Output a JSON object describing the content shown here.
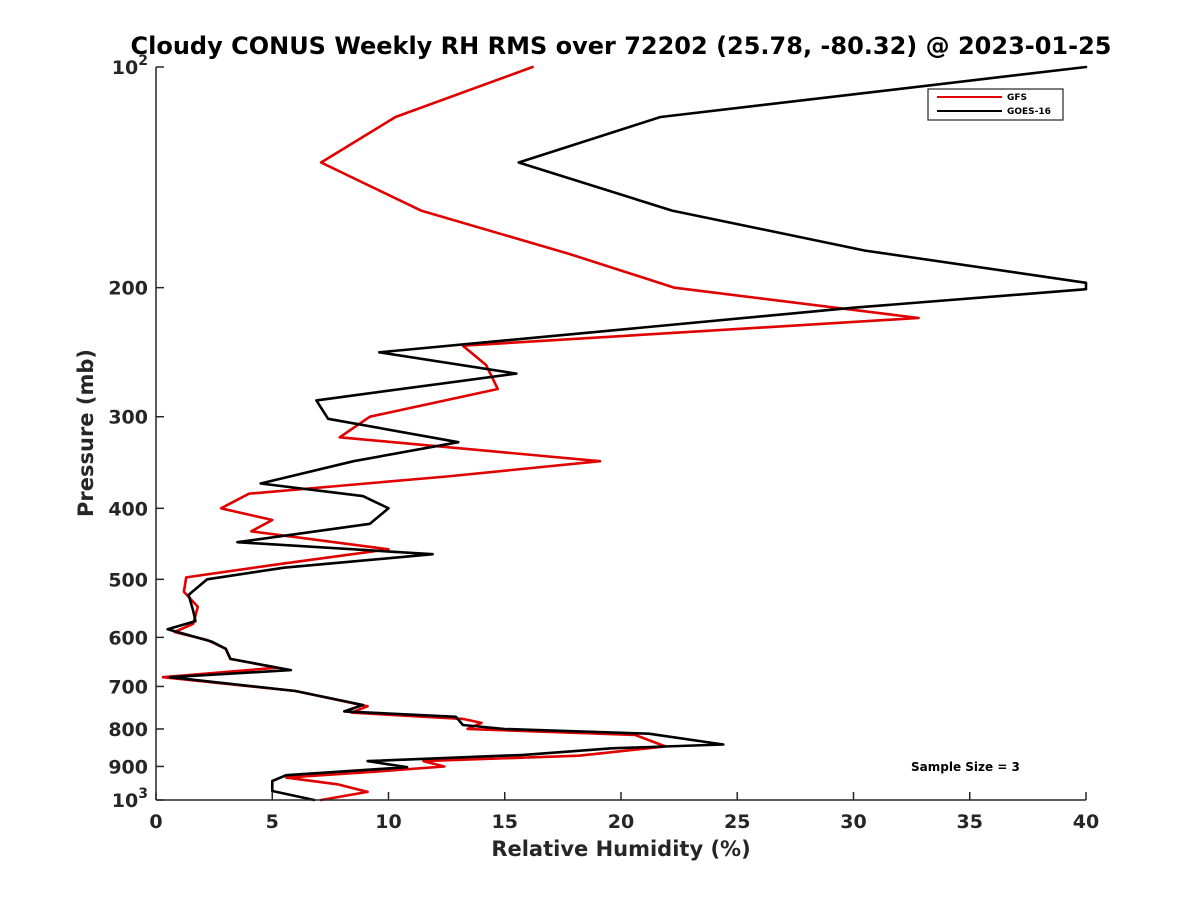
{
  "chart_data": {
    "type": "line",
    "title": "Cloudy CONUS Weekly RH RMS over 72202 (25.78, -80.32) @ 2023-01-25",
    "xlabel": "Relative Humidity (%)",
    "ylabel": "Pressure (mb)",
    "xlim": [
      0,
      40
    ],
    "ylim": [
      100,
      1000
    ],
    "y_scale": "log",
    "y_reversed": true,
    "grid": false,
    "legend_position": "top-right",
    "x_ticks": [
      0,
      5,
      10,
      15,
      20,
      25,
      30,
      35,
      40
    ],
    "y_ticks": [
      {
        "value": 100,
        "base": "10",
        "exp": "2"
      },
      {
        "value": 200,
        "label": "200"
      },
      {
        "value": 300,
        "label": "300"
      },
      {
        "value": 400,
        "label": "400"
      },
      {
        "value": 500,
        "label": "500"
      },
      {
        "value": 600,
        "label": "600"
      },
      {
        "value": 700,
        "label": "700"
      },
      {
        "value": 800,
        "label": "800"
      },
      {
        "value": 900,
        "label": "900"
      },
      {
        "value": 1000,
        "base": "10",
        "exp": "3"
      }
    ],
    "series": [
      {
        "name": "GFS",
        "color": "#e00000",
        "points": [
          [
            16.2,
            100
          ],
          [
            10.3,
            117
          ],
          [
            7.1,
            135
          ],
          [
            11.4,
            157
          ],
          [
            17.8,
            180
          ],
          [
            22.3,
            200
          ],
          [
            32.8,
            220
          ],
          [
            13.2,
            240
          ],
          [
            14.2,
            255
          ],
          [
            14.7,
            275
          ],
          [
            9.2,
            300
          ],
          [
            7.9,
            320
          ],
          [
            19.1,
            345
          ],
          [
            12.5,
            362
          ],
          [
            4.0,
            382
          ],
          [
            2.8,
            400
          ],
          [
            5.0,
            415
          ],
          [
            4.1,
            430
          ],
          [
            10.0,
            455
          ],
          [
            5.2,
            477
          ],
          [
            1.3,
            497
          ],
          [
            1.2,
            520
          ],
          [
            1.8,
            545
          ],
          [
            1.6,
            575
          ],
          [
            0.8,
            590
          ],
          [
            2.2,
            605
          ],
          [
            3.0,
            622
          ],
          [
            3.2,
            642
          ],
          [
            5.2,
            660
          ],
          [
            0.3,
            680
          ],
          [
            6.0,
            710
          ],
          [
            9.1,
            745
          ],
          [
            8.4,
            760
          ],
          [
            13.2,
            775
          ],
          [
            14.0,
            785
          ],
          [
            13.4,
            800
          ],
          [
            20.6,
            815
          ],
          [
            21.9,
            845
          ],
          [
            18.2,
            870
          ],
          [
            11.5,
            885
          ],
          [
            12.4,
            900
          ],
          [
            9.4,
            915
          ],
          [
            5.6,
            932
          ],
          [
            7.8,
            952
          ],
          [
            9.1,
            975
          ],
          [
            7.1,
            1000
          ]
        ]
      },
      {
        "name": "GOES-16",
        "color": "#000000",
        "points": [
          [
            40.0,
            100
          ],
          [
            21.7,
            117
          ],
          [
            15.6,
            135
          ],
          [
            22.2,
            157
          ],
          [
            30.5,
            178
          ],
          [
            40.0,
            197
          ],
          [
            40.0,
            201
          ],
          [
            30.0,
            213
          ],
          [
            9.6,
            245
          ],
          [
            15.5,
            262
          ],
          [
            6.9,
            285
          ],
          [
            7.4,
            302
          ],
          [
            13.0,
            325
          ],
          [
            8.5,
            345
          ],
          [
            4.5,
            370
          ],
          [
            8.9,
            385
          ],
          [
            10.0,
            400
          ],
          [
            9.2,
            420
          ],
          [
            3.5,
            445
          ],
          [
            11.9,
            462
          ],
          [
            5.5,
            482
          ],
          [
            2.2,
            500
          ],
          [
            1.4,
            525
          ],
          [
            1.6,
            552
          ],
          [
            1.7,
            570
          ],
          [
            0.5,
            585
          ],
          [
            2.4,
            608
          ],
          [
            3.0,
            622
          ],
          [
            3.2,
            642
          ],
          [
            5.8,
            665
          ],
          [
            0.6,
            680
          ],
          [
            6.0,
            710
          ],
          [
            8.9,
            742
          ],
          [
            8.1,
            757
          ],
          [
            12.9,
            770
          ],
          [
            13.2,
            790
          ],
          [
            15.0,
            800
          ],
          [
            21.2,
            812
          ],
          [
            24.4,
            840
          ],
          [
            19.6,
            850
          ],
          [
            15.8,
            868
          ],
          [
            9.1,
            885
          ],
          [
            10.8,
            902
          ],
          [
            5.6,
            925
          ],
          [
            5.0,
            942
          ],
          [
            5.0,
            972
          ],
          [
            6.8,
            1000
          ]
        ]
      }
    ],
    "annotations": [
      {
        "text": "Sample Size = 3"
      }
    ]
  }
}
